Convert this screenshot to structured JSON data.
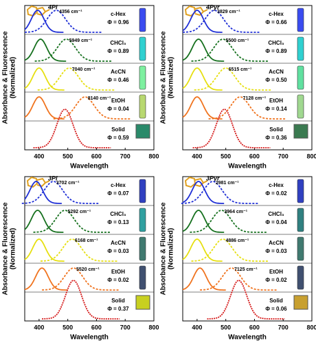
{
  "chart_data": [
    {
      "type": "spectra",
      "label": "4Pi",
      "xlabel": "Wavelength",
      "ylabel": [
        "Absorbance & Fluorescence",
        "(Normalized)"
      ],
      "xlim": [
        350,
        800
      ],
      "xticks": [
        400,
        500,
        600,
        700,
        800
      ],
      "series": [
        {
          "name": "c-Hex",
          "color": "#1f2fd6",
          "vial_color": "#3a4cf0",
          "values": [
            395,
            460
          ],
          "shift": "4356 cm⁻¹",
          "qy": "Φ = 0.96"
        },
        {
          "name": "CHCl₃",
          "color": "#16701e",
          "vial_color": "#30d0d0",
          "values": [
            405,
            495
          ],
          "shift": "5949 cm⁻¹",
          "qy": "Φ = 0.89"
        },
        {
          "name": "AcCN",
          "color": "#e6df10",
          "vial_color": "#7ef0a0",
          "values": [
            400,
            505
          ],
          "shift": "7040 cm⁻¹",
          "qy": "Φ = 0.46"
        },
        {
          "name": "EtOH",
          "color": "#f0731e",
          "vial_color": "#b8d870",
          "values": [
            400,
            560
          ],
          "shift": "8140 cm⁻¹",
          "qy": "Φ = 0.04"
        },
        {
          "name": "Solid",
          "color": "#d41515",
          "vial_color": "#2a8a6a",
          "values": [
            null,
            490
          ],
          "qy": "Φ = 0.59"
        }
      ]
    },
    {
      "type": "spectra",
      "label": "4Pyr",
      "xlabel": "Wavelength",
      "ylabel": [
        "Absorbance & Fluorescence",
        "(Normalized)"
      ],
      "xlim": [
        350,
        800
      ],
      "xticks": [
        400,
        500,
        600,
        700,
        800
      ],
      "series": [
        {
          "name": "c-Hex",
          "color": "#1f2fd6",
          "vial_color": "#3a4cf0",
          "values": [
            400,
            460
          ],
          "shift": "3829 cm⁻¹",
          "qy": "Φ = 0.66"
        },
        {
          "name": "CHCl₃",
          "color": "#16701e",
          "vial_color": "#30d0d0",
          "values": [
            405,
            490
          ],
          "shift": "5500 cm⁻¹",
          "qy": "Φ = 0.89"
        },
        {
          "name": "AcCN",
          "color": "#e6df10",
          "vial_color": "#60e0a0",
          "values": [
            400,
            500
          ],
          "shift": "6515 cm⁻¹",
          "qy": "Φ = 0.50"
        },
        {
          "name": "EtOH",
          "color": "#f0731e",
          "vial_color": "#a0d890",
          "values": [
            400,
            550
          ],
          "shift": "7128 cm⁻¹",
          "qy": "Φ = 0.14"
        },
        {
          "name": "Solid",
          "color": "#d41515",
          "vial_color": "#3a7a50",
          "values": [
            null,
            495
          ],
          "qy": "Φ = 0.36"
        }
      ]
    },
    {
      "type": "spectra",
      "label": "3Pi",
      "xlabel": "Wavelength",
      "ylabel": [
        "Absorbance & Fluorescence",
        "(Normalized)"
      ],
      "xlim": [
        350,
        800
      ],
      "xticks": [
        400,
        500,
        600,
        700,
        800
      ],
      "series": [
        {
          "name": "c-Hex",
          "color": "#1f2fd6",
          "vial_color": "#3040c0",
          "values": [
            390,
            450
          ],
          "shift": "3702 cm⁻¹",
          "qy": "Φ = 0.07"
        },
        {
          "name": "CHCl₃",
          "color": "#16701e",
          "vial_color": "#30a0a0",
          "values": [
            395,
            490
          ],
          "shift": "5292 cm⁻¹",
          "qy": "Φ = 0.13"
        },
        {
          "name": "AcCN",
          "color": "#e6df10",
          "vial_color": "#407a70",
          "values": [
            400,
            515
          ],
          "shift": "6168 cm⁻¹",
          "qy": "Φ = 0.03"
        },
        {
          "name": "EtOH",
          "color": "#f0731e",
          "vial_color": "#405070",
          "values": [
            410,
            520
          ],
          "shift": "5520 cm⁻¹",
          "qy": "Φ = 0.02"
        },
        {
          "name": "Solid",
          "color": "#d41515",
          "vial_color": "#c8d020",
          "values": [
            null,
            520
          ],
          "qy": "Φ = 0.37"
        }
      ]
    },
    {
      "type": "spectra",
      "label": "3Pyr",
      "xlabel": "Wavelength",
      "ylabel": [
        "Absorbance & Fluorescence",
        "(Normalized)"
      ],
      "xlim": [
        350,
        800
      ],
      "xticks": [
        400,
        500,
        600,
        700,
        800
      ],
      "series": [
        {
          "name": "c-Hex",
          "color": "#1f2fd6",
          "vial_color": "#3040c0",
          "values": [
            405,
            455
          ],
          "shift": "2981 cm⁻¹",
          "qy": "Φ = 0.02"
        },
        {
          "name": "CHCl₃",
          "color": "#16701e",
          "vial_color": "#308080",
          "values": [
            405,
            485
          ],
          "shift": "3964 cm⁻¹",
          "qy": "Φ = 0.04"
        },
        {
          "name": "AcCN",
          "color": "#e6df10",
          "vial_color": "#407a70",
          "values": [
            400,
            490
          ],
          "shift": "4886 cm⁻¹",
          "qy": "Φ = 0.03"
        },
        {
          "name": "EtOH",
          "color": "#f0731e",
          "vial_color": "#405070",
          "values": [
            410,
            520
          ],
          "shift": "7125 cm⁻¹",
          "qy": "Φ = 0.02"
        },
        {
          "name": "Solid",
          "color": "#d41515",
          "vial_color": "#c8a030",
          "values": [
            null,
            545
          ],
          "qy": "Φ = 0.06"
        }
      ]
    }
  ]
}
